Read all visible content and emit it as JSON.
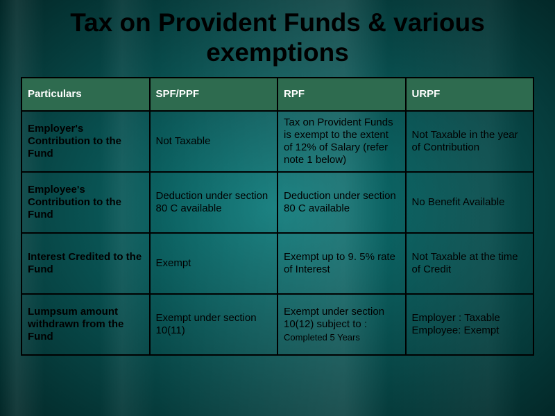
{
  "title": "Tax on Provident Funds & various exemptions",
  "table": {
    "columns": [
      "Particulars",
      "SPF/PPF",
      "RPF",
      "URPF"
    ],
    "header_bg": "#2e6b4f",
    "header_fg": "#ffffff",
    "border_color": "#000000",
    "cell_fg": "#000000",
    "title_fontsize": 37,
    "header_fontsize": 15,
    "cell_fontsize": 15,
    "small_fontsize": 13,
    "rows": [
      {
        "label": "Employer's Contribution to the Fund",
        "spf": "Not Taxable",
        "rpf": "Tax on Provident Funds is exempt to the extent of 12% of Salary (refer note 1 below)",
        "urpf": "Not Taxable in the year of Contribution"
      },
      {
        "label": "Employee's Contribution to the Fund",
        "spf": "Deduction under section 80 C available",
        "rpf": "Deduction under section 80 C available",
        "urpf": "No Benefit Available"
      },
      {
        "label": "Interest Credited to the Fund",
        "spf": "Exempt",
        "rpf": "Exempt up to 9. 5% rate of Interest",
        "urpf": "Not Taxable at the time of Credit"
      },
      {
        "label": "Lumpsum amount withdrawn from the Fund",
        "spf": "Exempt under section 10(11)",
        "rpf": "Exempt under section 10(12) subject to :",
        "rpf_sub": "Completed 5 Years",
        "urpf": "Employer : Taxable Employee: Exempt"
      }
    ]
  },
  "background": {
    "center_color": "#0d7a7a",
    "outer_color": "#032828"
  }
}
